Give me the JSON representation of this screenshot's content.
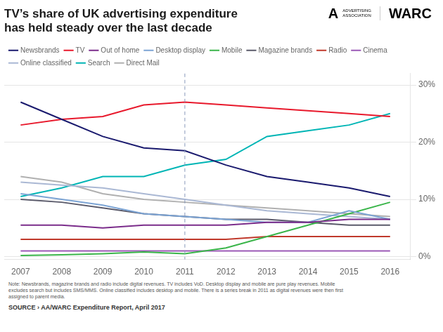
{
  "chart_data": {
    "type": "line",
    "title": [
      "TV’s share of UK advertising expenditure",
      "has held steady over the last decade"
    ],
    "x": [
      2007,
      2008,
      2009,
      2010,
      2011,
      2012,
      2013,
      2014,
      2015,
      2016
    ],
    "series": [
      {
        "name": "Newsbrands",
        "color": "#1a1a6e",
        "values": [
          27,
          24,
          21,
          19,
          18.5,
          16,
          14,
          13,
          12,
          10.5
        ]
      },
      {
        "name": "TV",
        "color": "#e8192c",
        "values": [
          23,
          24,
          24.5,
          26.5,
          27,
          26.5,
          26,
          25.5,
          25,
          24.5
        ]
      },
      {
        "name": "Out of home",
        "color": "#7b2d8b",
        "values": [
          5.5,
          5.5,
          5.0,
          5.5,
          5.5,
          5.5,
          6.0,
          6.0,
          6.5,
          6.5
        ]
      },
      {
        "name": "Desktop display",
        "color": "#7ca4d4",
        "values": [
          11.0,
          10.0,
          9.0,
          7.5,
          7.0,
          6.5,
          6.0,
          6.0,
          8.0,
          6.5
        ]
      },
      {
        "name": "Mobile",
        "color": "#3ab54a",
        "values": [
          0.2,
          0.3,
          0.5,
          0.8,
          0.5,
          1.5,
          3.5,
          5.5,
          7.5,
          9.5
        ]
      },
      {
        "name": "Magazine brands",
        "color": "#5a5a6a",
        "values": [
          10.0,
          9.5,
          8.5,
          7.5,
          7.0,
          6.5,
          6.5,
          6.0,
          5.5,
          5.5
        ]
      },
      {
        "name": "Radio",
        "color": "#c0392b",
        "values": [
          3.0,
          3.0,
          3.0,
          3.0,
          3.0,
          3.0,
          3.5,
          3.5,
          3.5,
          3.5
        ]
      },
      {
        "name": "Cinema",
        "color": "#9b59b6",
        "values": [
          1.0,
          1.0,
          1.0,
          1.0,
          1.0,
          1.0,
          1.0,
          1.0,
          1.0,
          1.0
        ]
      },
      {
        "name": "Online classified",
        "color": "#aab8d4",
        "values": [
          13.0,
          12.5,
          12.0,
          11.0,
          10.0,
          9.0,
          8.0,
          7.5,
          7.0,
          6.5
        ]
      },
      {
        "name": "Search",
        "color": "#00b5b5",
        "values": [
          10.5,
          12.0,
          14.0,
          14.0,
          16.0,
          17.0,
          21.0,
          22.0,
          23.0,
          25.0
        ]
      },
      {
        "name": "Direct Mail",
        "color": "#b0b0b0",
        "values": [
          14.0,
          13.0,
          11.0,
          10.0,
          9.5,
          9.0,
          8.5,
          8.0,
          7.5,
          7.0
        ]
      }
    ],
    "xlim": [
      2006.6,
      2016.5
    ],
    "xticks": [
      2007,
      2008,
      2009,
      2010,
      2011,
      2012,
      2013,
      2014,
      2015,
      2016
    ],
    "ylim": [
      -0.5,
      32
    ],
    "yticks": [
      {
        "value": 0,
        "label": "0%"
      },
      {
        "value": 10,
        "label": "10%"
      },
      {
        "value": 20,
        "label": "20%"
      },
      {
        "value": 30,
        "label": "30%"
      }
    ],
    "grid": "y",
    "legend": "top",
    "reference_lines": [
      {
        "x": 2011,
        "color": "#8899bb",
        "line_style": "dashed"
      }
    ],
    "logo": [
      "A",
      "ADVERTISING\nASSOCIATION",
      "WARC"
    ],
    "note": [
      "Note: Newsbrands, magazine brands and radio include digital revenues. TV includes VoD. Desktop display and mobile are pure play revenues. Mobile",
      "excludes search but includes SMS/MMS. Online classified includes desktop and mobile. There is a series break in 2011 as digital revenues were then first",
      "assigned to parent media."
    ],
    "source": "SOURCE › AA/WARC Expenditure Report, April 2017"
  }
}
